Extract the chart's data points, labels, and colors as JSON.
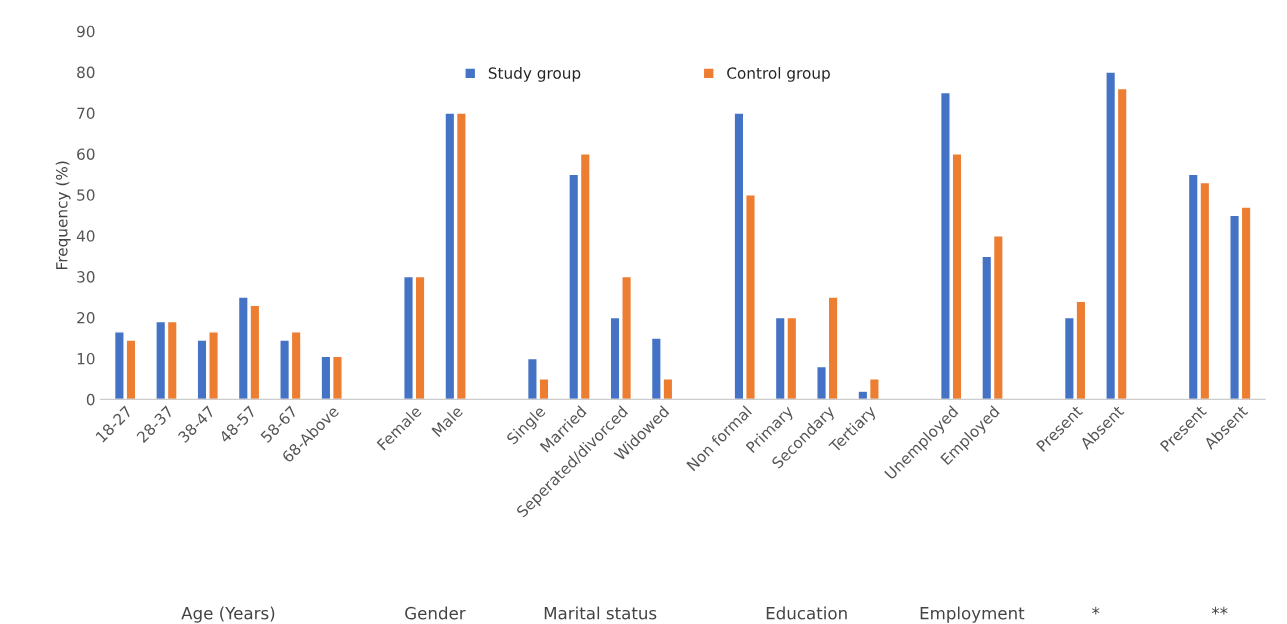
{
  "chart_data": {
    "type": "bar",
    "ylabel": "Frequency (%)",
    "categories": [
      "18-27",
      "28-37",
      "38-47",
      "48-57",
      "58-67",
      "68-Above",
      null,
      "Female",
      "Male",
      null,
      "Single",
      "Married",
      "Seperated/divorced",
      "Widowed",
      null,
      "Non formal",
      "Primary",
      "Secondary",
      "Tertiary",
      null,
      "Unemployed",
      "Employed",
      null,
      "Present",
      "Absent",
      null,
      "Present",
      "Absent"
    ],
    "series": [
      {
        "name": "Study group",
        "color": "#4472c4",
        "values": [
          16.5,
          19,
          14.5,
          25,
          14.5,
          10.5,
          null,
          30,
          70,
          null,
          10,
          55,
          20,
          15,
          null,
          70,
          20,
          8,
          2,
          null,
          75,
          35,
          null,
          20,
          80,
          null,
          55,
          45
        ]
      },
      {
        "name": "Control group",
        "color": "#ed7d31",
        "values": [
          14.5,
          19,
          16.5,
          23,
          16.5,
          10.5,
          null,
          30,
          70,
          null,
          5,
          60,
          30,
          5,
          null,
          50,
          20,
          25,
          5,
          null,
          60,
          40,
          null,
          24,
          76,
          null,
          53,
          47
        ]
      }
    ],
    "ylim": [
      0,
      90
    ],
    "yticks": [
      0,
      10,
      20,
      30,
      40,
      50,
      60,
      70,
      80,
      90
    ],
    "grid": false,
    "legend": "top",
    "annotations": [
      "Age (Years)",
      "Gender",
      "Marital status",
      "Education",
      "Employment",
      "*",
      "**"
    ]
  }
}
